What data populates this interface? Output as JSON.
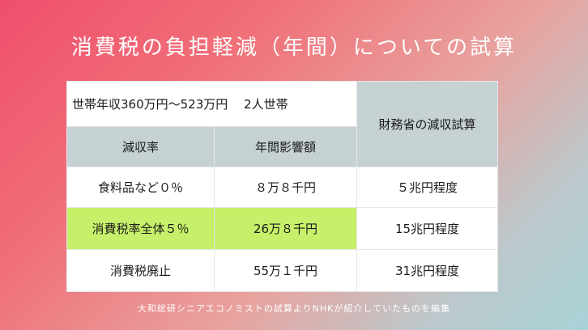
{
  "title": "消費税の負担軽減（年間）についての試算",
  "table": {
    "household_label": "世帯年収360万円〜523万円　 2人世帯",
    "ministry_header": "財務省の減収試算",
    "col_rate": "減収率",
    "col_impact": "年間影響額",
    "rows": [
      {
        "rate": "食料品など０％",
        "impact": "８万８千円",
        "ministry": "５兆円程度",
        "highlight": false
      },
      {
        "rate": "消費税率全体５％",
        "impact": "26万８千円",
        "ministry": "15兆円程度",
        "highlight": true
      },
      {
        "rate": "消費税廃止",
        "impact": "55万１千円",
        "ministry": "31兆円程度",
        "highlight": false
      }
    ]
  },
  "footer": "大和総研シニアエコノミストの試算よりNHKが紹介していたものを編集",
  "colors": {
    "header_gray": "#c6d1d4",
    "highlight_green": "#c6f06a",
    "background_start": "#ef4f6c",
    "background_end": "#a9d3d7"
  }
}
